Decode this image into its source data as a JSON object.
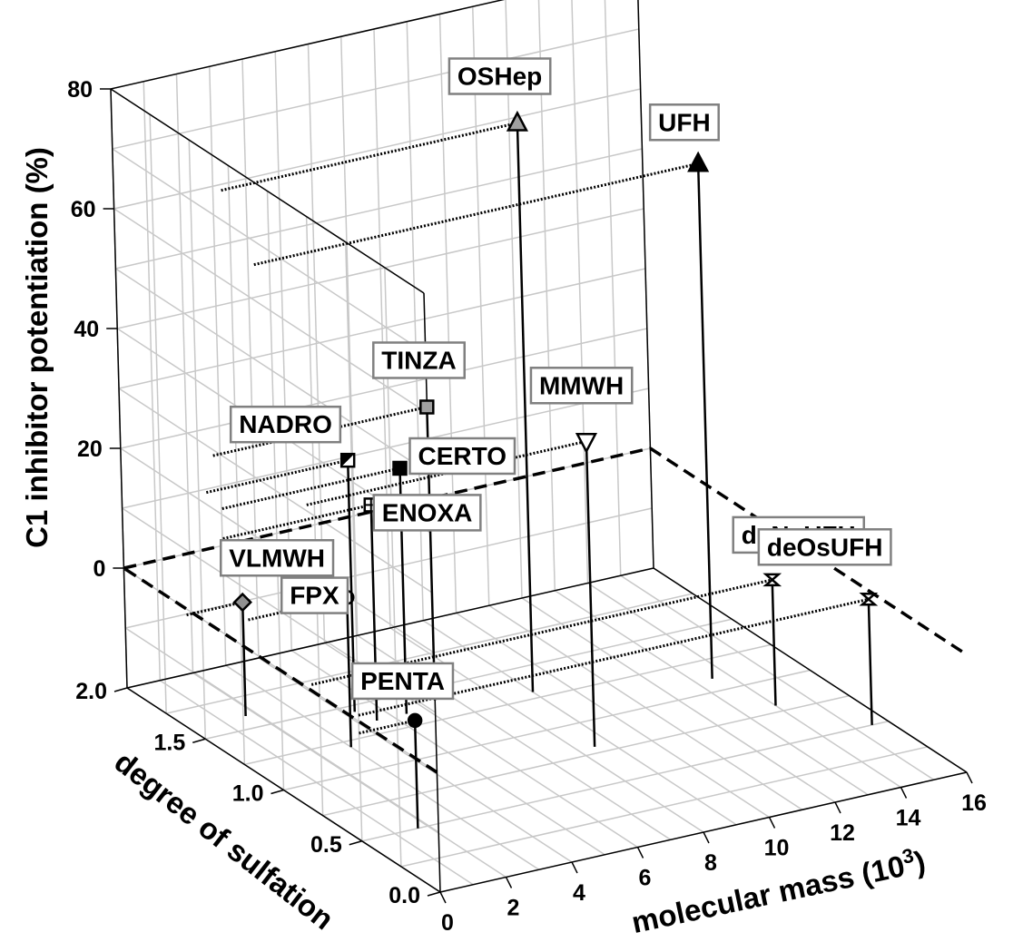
{
  "chart_data": {
    "type": "scatter",
    "dimensions": "3d",
    "axes": {
      "x": {
        "label": "molecular mass (10",
        "label_superscript": "3",
        "label_close": ")",
        "range": [
          0,
          16
        ],
        "ticks": [
          "0",
          "2",
          "4",
          "6",
          "8",
          "10",
          "12",
          "14",
          "16"
        ]
      },
      "y": {
        "label": "degree of sulfation",
        "range": [
          0.0,
          2.0
        ],
        "ticks": [
          "0.0",
          "0.5",
          "1.0",
          "1.5",
          "2.0"
        ]
      },
      "z": {
        "label": "C1 inhibitor potentiation (%)",
        "range": [
          -20,
          80
        ],
        "ticks": [
          "0",
          "20",
          "40",
          "60",
          "80"
        ]
      }
    },
    "grid": true,
    "points": [
      {
        "label": "FPX",
        "mass": 1.7,
        "sulfation": 1.6,
        "potentiation": -1,
        "marker": "diamond",
        "fill": "#909090"
      },
      {
        "label": "PENTA",
        "mass": 1.7,
        "sulfation": 0.5,
        "potentiation": -2,
        "marker": "circle",
        "fill": "#000000"
      },
      {
        "label": "VLMWH",
        "mass": 3.0,
        "sulfation": 1.2,
        "potentiation": 5,
        "marker": "circle",
        "fill": "#ffffff"
      },
      {
        "label": "NADRO",
        "mass": 4.3,
        "sulfation": 1.45,
        "potentiation": 22,
        "marker": "square-half",
        "fill": "#000000"
      },
      {
        "label": "ENOXA",
        "mass": 4.5,
        "sulfation": 1.35,
        "potentiation": 16,
        "marker": "square-grid",
        "fill": "#ffffff"
      },
      {
        "label": "CERTO",
        "mass": 5.4,
        "sulfation": 1.35,
        "potentiation": 21,
        "marker": "square",
        "fill": "#000000"
      },
      {
        "label": "TINZA",
        "mass": 6.5,
        "sulfation": 1.4,
        "potentiation": 29,
        "marker": "square",
        "fill": "#a0a0a0"
      },
      {
        "label": "OSHep",
        "mass": 9.0,
        "sulfation": 1.3,
        "potentiation": 75,
        "marker": "triangle-up",
        "fill": "#a0a0a0"
      },
      {
        "label": "MMWH",
        "mass": 8.5,
        "sulfation": 0.8,
        "potentiation": 31,
        "marker": "triangle-down",
        "fill": "#ffffff"
      },
      {
        "label": "UFH",
        "mass": 13.5,
        "sulfation": 1.1,
        "potentiation": 66,
        "marker": "triangle-up",
        "fill": "#000000"
      },
      {
        "label": "deNsUFH",
        "mass": 14.0,
        "sulfation": 0.8,
        "potentiation": 1,
        "marker": "hourglass",
        "fill": "#ffffff"
      },
      {
        "label": "deOsUFH",
        "mass": 15.5,
        "sulfation": 0.5,
        "potentiation": 1,
        "marker": "hourglass",
        "fill": "#ffffff"
      }
    ]
  }
}
